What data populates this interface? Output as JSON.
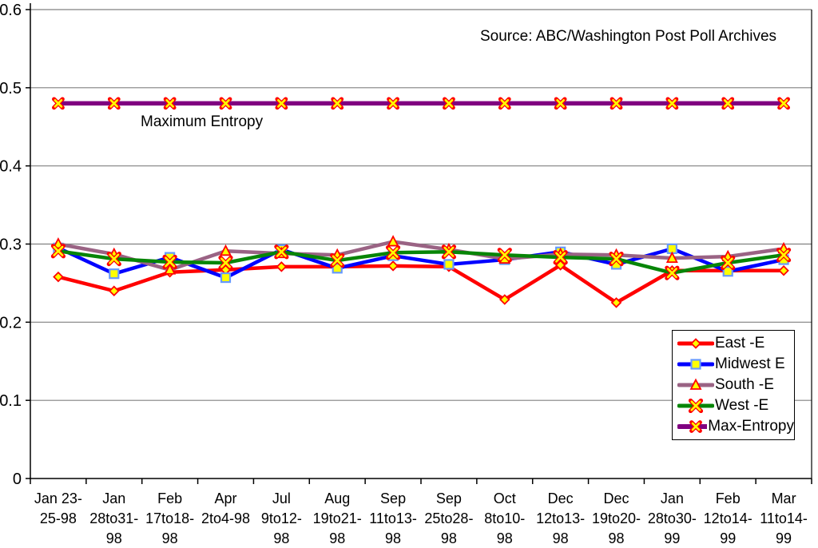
{
  "annotations": {
    "source": "Source: ABC/Washington Post Poll Archives",
    "max_entropy_label": "Maximum Entropy"
  },
  "chart_data": {
    "type": "line",
    "title": "",
    "xlabel": "",
    "ylabel": "",
    "ylim": [
      0,
      0.6
    ],
    "yticks": [
      0,
      0.1,
      0.2,
      0.3,
      0.4,
      0.5,
      0.6
    ],
    "ytick_labels": [
      "0",
      "0.1",
      "0.2",
      "0.3",
      "0.4",
      "0.5",
      "0.6"
    ],
    "grid": true,
    "gridline_color": "#808080",
    "axis_color": "#000000",
    "legend_position": "inside-right",
    "marker_fill_color": "#FFFF00",
    "categories": [
      "Jan 23-25-98",
      "Jan 28to31-98",
      "Feb 17to18-98",
      "Apr 2to4-98",
      "Jul 9to12-98",
      "Aug 19to21-98",
      "Sep 11to13-98",
      "Sep 25to28-98",
      "Oct 8to10-98",
      "Dec 12to13-98",
      "Dec 19to20-98",
      "Jan 28to30-99",
      "Feb 12to14-99",
      "Mar 11to14-99"
    ],
    "category_display_lines": [
      [
        "Jan 23-",
        "25-98"
      ],
      [
        "Jan",
        "28to31-",
        "98"
      ],
      [
        "Feb",
        "17to18-",
        "98"
      ],
      [
        "Apr",
        "2to4-98"
      ],
      [
        "Jul",
        "9to12-",
        "98"
      ],
      [
        "Aug",
        "19to21-",
        "98"
      ],
      [
        "Sep",
        "11to13-",
        "98"
      ],
      [
        "Sep",
        "25to28-",
        "98"
      ],
      [
        "Oct",
        "8to10-",
        "98"
      ],
      [
        "Dec",
        "12to13-",
        "98"
      ],
      [
        "Dec",
        "19to20-",
        "98"
      ],
      [
        "Jan",
        "28to30-",
        "99"
      ],
      [
        "Feb",
        "12to14-",
        "99"
      ],
      [
        "Mar",
        "11to14-",
        "99"
      ]
    ],
    "series": [
      {
        "name": "East -E",
        "color": "#FF0000",
        "marker": "diamond",
        "marker_stroke": "#FF0000",
        "line_width": 4.5,
        "values": [
          0.258,
          0.24,
          0.264,
          0.267,
          0.271,
          0.271,
          0.272,
          0.271,
          0.229,
          0.273,
          0.225,
          0.266,
          0.266,
          0.266
        ]
      },
      {
        "name": "Midwest E",
        "color": "#0000FF",
        "marker": "square",
        "marker_stroke": "#6699FF",
        "line_width": 4.5,
        "values": [
          0.295,
          0.262,
          0.283,
          0.257,
          0.293,
          0.269,
          0.285,
          0.274,
          0.28,
          0.29,
          0.274,
          0.294,
          0.265,
          0.28
        ]
      },
      {
        "name": "South -E",
        "color": "#9A6384",
        "marker": "triangle",
        "marker_stroke": "#FF0000",
        "line_width": 4.5,
        "values": [
          0.3,
          0.287,
          0.267,
          0.291,
          0.288,
          0.286,
          0.303,
          0.293,
          0.281,
          0.287,
          0.286,
          0.282,
          0.284,
          0.294
        ]
      },
      {
        "name": "West -E",
        "color": "#078507",
        "marker": "x",
        "marker_stroke": "#FF0000",
        "line_width": 4.5,
        "values": [
          0.291,
          0.281,
          0.277,
          0.276,
          0.29,
          0.279,
          0.289,
          0.29,
          0.286,
          0.283,
          0.281,
          0.263,
          0.276,
          0.286
        ]
      },
      {
        "name": "Max-Entropy",
        "color": "#800080",
        "marker": "x-small",
        "marker_stroke": "#FF0000",
        "line_width": 5.5,
        "values": [
          0.48,
          0.48,
          0.48,
          0.48,
          0.48,
          0.48,
          0.48,
          0.48,
          0.48,
          0.48,
          0.48,
          0.48,
          0.48,
          0.48
        ]
      }
    ]
  }
}
